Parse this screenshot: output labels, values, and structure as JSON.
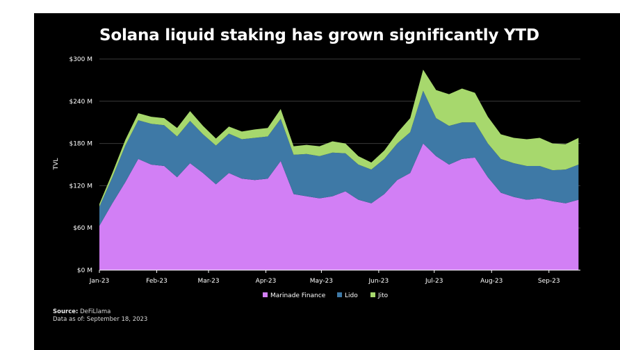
{
  "title": "Solana liquid staking has grown significantly YTD",
  "footer": {
    "source_label": "Source:",
    "source_value": "DeFiLlama",
    "asof_label": "Data as of:",
    "asof_value": "September 18, 2023"
  },
  "chart_data": {
    "type": "area",
    "stacked": true,
    "title": "Solana liquid staking has grown significantly YTD",
    "xlabel": "",
    "ylabel": "TVL",
    "ylim": [
      0,
      300
    ],
    "yticks": [
      0,
      60,
      120,
      180,
      240,
      300
    ],
    "ytick_labels": [
      "$0 M",
      "$60 M",
      "$120 M",
      "$180 M",
      "$240 M",
      "$300 M"
    ],
    "xtick_labels": [
      "Jan-23",
      "Feb-23",
      "Mar-23",
      "Apr-23",
      "May-23",
      "Jun-23",
      "Jul-23",
      "Aug-23",
      "Sep-23"
    ],
    "grid": true,
    "legend_position": "bottom",
    "background": "#000000",
    "x": [
      "2023-01-01",
      "2023-01-08",
      "2023-01-15",
      "2023-01-22",
      "2023-01-29",
      "2023-02-05",
      "2023-02-12",
      "2023-02-19",
      "2023-02-26",
      "2023-03-05",
      "2023-03-12",
      "2023-03-19",
      "2023-03-26",
      "2023-04-02",
      "2023-04-09",
      "2023-04-16",
      "2023-04-23",
      "2023-04-30",
      "2023-05-07",
      "2023-05-14",
      "2023-05-21",
      "2023-05-28",
      "2023-06-04",
      "2023-06-11",
      "2023-06-18",
      "2023-06-25",
      "2023-07-02",
      "2023-07-09",
      "2023-07-16",
      "2023-07-23",
      "2023-07-30",
      "2023-08-06",
      "2023-08-13",
      "2023-08-20",
      "2023-08-27",
      "2023-09-03",
      "2023-09-10",
      "2023-09-17"
    ],
    "series": [
      {
        "name": "Marinade Finance",
        "color": "#d27ff5",
        "values": [
          63,
          95,
          125,
          158,
          150,
          148,
          132,
          152,
          138,
          122,
          138,
          130,
          128,
          130,
          155,
          108,
          105,
          102,
          105,
          112,
          100,
          95,
          108,
          128,
          138,
          180,
          162,
          150,
          158,
          160,
          132,
          110,
          104,
          100,
          102,
          98,
          95,
          100
        ]
      },
      {
        "name": "Lido",
        "color": "#3e79a6",
        "values": [
          27,
          37,
          52,
          55,
          58,
          58,
          58,
          60,
          55,
          55,
          56,
          56,
          60,
          60,
          60,
          56,
          60,
          60,
          62,
          54,
          50,
          48,
          50,
          52,
          58,
          75,
          54,
          55,
          52,
          50,
          48,
          48,
          48,
          48,
          46,
          44,
          48,
          50
        ]
      },
      {
        "name": "Jito",
        "color": "#a7d86d",
        "values": [
          4,
          6,
          8,
          10,
          10,
          10,
          12,
          14,
          12,
          10,
          10,
          11,
          12,
          12,
          14,
          12,
          13,
          14,
          16,
          14,
          12,
          10,
          12,
          15,
          20,
          30,
          40,
          45,
          48,
          42,
          38,
          35,
          36,
          38,
          40,
          38,
          36,
          38
        ]
      }
    ]
  }
}
